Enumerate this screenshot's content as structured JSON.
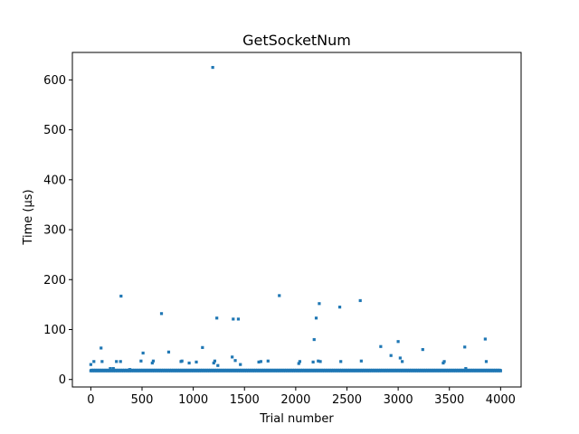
{
  "chart_data": {
    "type": "scatter",
    "title": "GetSocketNum",
    "xlabel": "Trial number",
    "ylabel": "Time (µs)",
    "xlim": [
      -180,
      4200
    ],
    "ylim": [
      -15,
      655
    ],
    "xticks": [
      0,
      500,
      1000,
      1500,
      2000,
      2500,
      3000,
      3500,
      4000
    ],
    "yticks": [
      0,
      100,
      200,
      300,
      400,
      500,
      600
    ],
    "grid": false,
    "legend": "none",
    "series": [
      {
        "color": "#1f77b4",
        "baseline": {
          "x_range": [
            0,
            4000
          ],
          "step": 4,
          "y": 18
        },
        "points": [
          [
            0,
            30
          ],
          [
            30,
            36
          ],
          [
            100,
            63
          ],
          [
            110,
            36
          ],
          [
            190,
            22
          ],
          [
            220,
            22
          ],
          [
            250,
            36
          ],
          [
            290,
            36
          ],
          [
            295,
            167
          ],
          [
            380,
            20
          ],
          [
            490,
            37
          ],
          [
            510,
            53
          ],
          [
            600,
            33
          ],
          [
            610,
            37
          ],
          [
            690,
            132
          ],
          [
            760,
            55
          ],
          [
            880,
            36
          ],
          [
            890,
            37
          ],
          [
            960,
            33
          ],
          [
            1030,
            35
          ],
          [
            1090,
            64
          ],
          [
            1190,
            625
          ],
          [
            1200,
            33
          ],
          [
            1210,
            37
          ],
          [
            1230,
            123
          ],
          [
            1240,
            28
          ],
          [
            1380,
            45
          ],
          [
            1390,
            121
          ],
          [
            1410,
            38
          ],
          [
            1440,
            121
          ],
          [
            1460,
            30
          ],
          [
            1640,
            35
          ],
          [
            1660,
            36
          ],
          [
            1730,
            37
          ],
          [
            1840,
            168
          ],
          [
            2030,
            32
          ],
          [
            2040,
            36
          ],
          [
            2170,
            35
          ],
          [
            2180,
            80
          ],
          [
            2200,
            123
          ],
          [
            2220,
            37
          ],
          [
            2230,
            152
          ],
          [
            2240,
            36
          ],
          [
            2430,
            145
          ],
          [
            2440,
            36
          ],
          [
            2630,
            158
          ],
          [
            2640,
            37
          ],
          [
            2830,
            66
          ],
          [
            2930,
            48
          ],
          [
            3000,
            76
          ],
          [
            3020,
            43
          ],
          [
            3040,
            36
          ],
          [
            3240,
            60
          ],
          [
            3440,
            33
          ],
          [
            3450,
            36
          ],
          [
            3650,
            65
          ],
          [
            3660,
            22
          ],
          [
            3850,
            81
          ],
          [
            3860,
            36
          ]
        ]
      }
    ]
  }
}
